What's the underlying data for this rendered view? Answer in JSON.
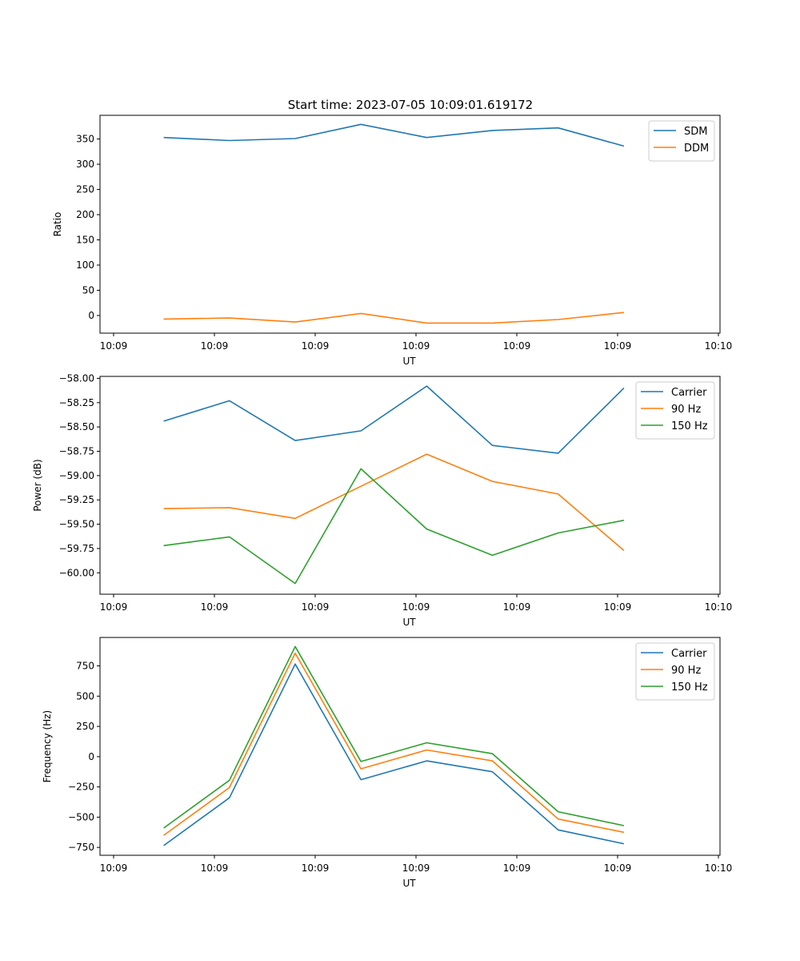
{
  "figure_title": "Start time: 2023-07-05 10:09:01.619172",
  "colors": {
    "c0": "#1f77b4",
    "c1": "#ff7f0e",
    "c2": "#2ca02c"
  },
  "chart_data": [
    {
      "type": "line",
      "title": "Start time: 2023-07-05 10:09:01.619172",
      "xlabel": "UT",
      "ylabel": "Ratio",
      "x_ticks": [
        "10:09",
        "10:09",
        "10:09",
        "10:09",
        "10:09",
        "10:09",
        "10:10"
      ],
      "x": [
        0.5,
        1.15,
        1.8,
        2.45,
        3.1,
        3.75,
        4.4,
        5.05
      ],
      "xlim": [
        -0.13,
        6.0
      ],
      "ylim": [
        -35,
        397
      ],
      "y_ticks": [
        0,
        50,
        100,
        150,
        200,
        250,
        300,
        350
      ],
      "y_tick_labels": [
        "0",
        "50",
        "100",
        "150",
        "200",
        "250",
        "300",
        "350"
      ],
      "legend": "top-right",
      "series": [
        {
          "name": "SDM",
          "color": "#1f77b4",
          "values": [
            353,
            347,
            351,
            379,
            353,
            367,
            372,
            336
          ]
        },
        {
          "name": "DDM",
          "color": "#ff7f0e",
          "values": [
            -7,
            -5,
            -13,
            4,
            -15,
            -15,
            -8,
            6
          ]
        }
      ]
    },
    {
      "type": "line",
      "title": "",
      "xlabel": "UT",
      "ylabel": "Power (dB)",
      "x_ticks": [
        "10:09",
        "10:09",
        "10:09",
        "10:09",
        "10:09",
        "10:09",
        "10:10"
      ],
      "x": [
        0.5,
        1.15,
        1.8,
        2.45,
        3.1,
        3.75,
        4.4,
        5.05
      ],
      "xlim": [
        -0.13,
        6.0
      ],
      "ylim": [
        -60.22,
        -57.98
      ],
      "y_ticks": [
        -60.0,
        -59.75,
        -59.5,
        -59.25,
        -59.0,
        -58.75,
        -58.5,
        -58.25,
        -58.0
      ],
      "y_tick_labels": [
        "−60.00",
        "−59.75",
        "−59.50",
        "−59.25",
        "−59.00",
        "−58.75",
        "−58.50",
        "−58.25",
        "−58.00"
      ],
      "legend": "top-right",
      "series": [
        {
          "name": "Carrier",
          "color": "#1f77b4",
          "values": [
            -58.44,
            -58.23,
            -58.64,
            -58.54,
            -58.08,
            -58.69,
            -58.77,
            -58.1
          ]
        },
        {
          "name": "90 Hz",
          "color": "#ff7f0e",
          "values": [
            -59.34,
            -59.33,
            -59.44,
            -59.11,
            -58.78,
            -59.06,
            -59.19,
            -59.77
          ]
        },
        {
          "name": "150 Hz",
          "color": "#2ca02c",
          "values": [
            -59.72,
            -59.63,
            -60.11,
            -58.93,
            -59.55,
            -59.82,
            -59.59,
            -59.46
          ]
        }
      ]
    },
    {
      "type": "line",
      "title": "",
      "xlabel": "UT",
      "ylabel": "Frequency (Hz)",
      "x_ticks": [
        "10:09",
        "10:09",
        "10:09",
        "10:09",
        "10:09",
        "10:09",
        "10:10"
      ],
      "x": [
        0.5,
        1.15,
        1.8,
        2.45,
        3.1,
        3.75,
        4.4,
        5.05
      ],
      "xlim": [
        -0.13,
        6.0
      ],
      "ylim": [
        -815,
        985
      ],
      "y_ticks": [
        -750,
        -500,
        -250,
        0,
        250,
        500,
        750
      ],
      "y_tick_labels": [
        "−750",
        "−500",
        "−250",
        "0",
        "250",
        "500",
        "750"
      ],
      "legend": "top-right",
      "series": [
        {
          "name": "Carrier",
          "color": "#1f77b4",
          "values": [
            -735,
            -340,
            765,
            -190,
            -35,
            -125,
            -605,
            -720
          ]
        },
        {
          "name": "90 Hz",
          "color": "#ff7f0e",
          "values": [
            -650,
            -255,
            855,
            -100,
            55,
            -35,
            -515,
            -625
          ]
        },
        {
          "name": "150 Hz",
          "color": "#2ca02c",
          "values": [
            -590,
            -195,
            910,
            -40,
            115,
            25,
            -455,
            -570
          ]
        }
      ]
    }
  ]
}
